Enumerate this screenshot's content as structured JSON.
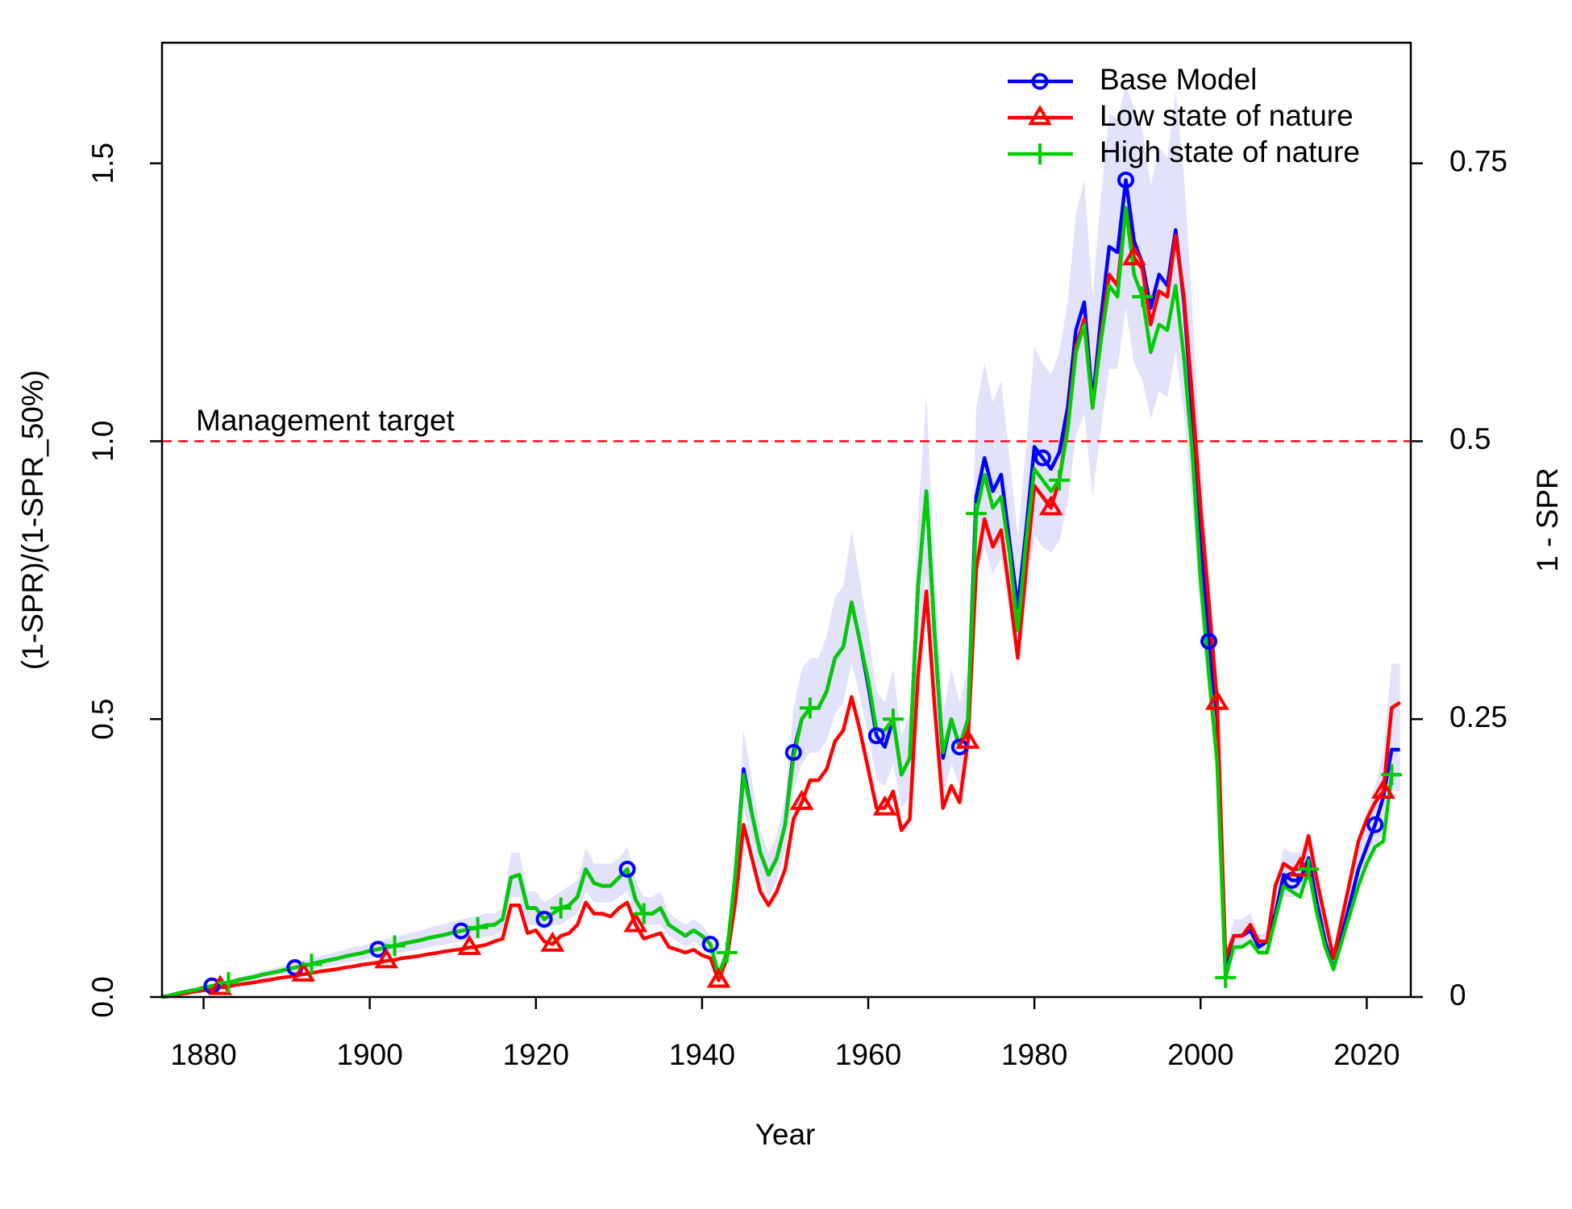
{
  "chart_data": {
    "type": "line",
    "x_label": "Year",
    "y_label": "(1-SPR)/(1-SPR_50%)",
    "y2_label": "1 - SPR",
    "x": [
      1875,
      1876,
      1877,
      1878,
      1879,
      1880,
      1881,
      1882,
      1883,
      1884,
      1885,
      1886,
      1887,
      1888,
      1889,
      1890,
      1891,
      1892,
      1893,
      1894,
      1895,
      1896,
      1897,
      1898,
      1899,
      1900,
      1901,
      1902,
      1903,
      1904,
      1905,
      1906,
      1907,
      1908,
      1909,
      1910,
      1911,
      1912,
      1913,
      1914,
      1915,
      1916,
      1917,
      1918,
      1919,
      1920,
      1921,
      1922,
      1923,
      1924,
      1925,
      1926,
      1927,
      1928,
      1929,
      1930,
      1931,
      1932,
      1933,
      1934,
      1935,
      1936,
      1937,
      1938,
      1939,
      1940,
      1941,
      1942,
      1943,
      1944,
      1945,
      1946,
      1947,
      1948,
      1949,
      1950,
      1951,
      1952,
      1953,
      1954,
      1955,
      1956,
      1957,
      1958,
      1959,
      1960,
      1961,
      1962,
      1963,
      1964,
      1965,
      1966,
      1967,
      1968,
      1969,
      1970,
      1971,
      1972,
      1973,
      1974,
      1975,
      1976,
      1977,
      1978,
      1979,
      1980,
      1981,
      1982,
      1983,
      1984,
      1985,
      1986,
      1987,
      1988,
      1989,
      1990,
      1991,
      1992,
      1993,
      1994,
      1995,
      1996,
      1997,
      1998,
      1999,
      2000,
      2001,
      2002,
      2003,
      2004,
      2005,
      2006,
      2007,
      2008,
      2009,
      2010,
      2011,
      2012,
      2013,
      2014,
      2015,
      2016,
      2017,
      2018,
      2019,
      2020,
      2021,
      2022,
      2023,
      2024
    ],
    "series": [
      {
        "name": "Base Model",
        "color": "#0000ff",
        "marker": "circle",
        "values": [
          0,
          0.003,
          0.007,
          0.01,
          0.013,
          0.017,
          0.02,
          0.023,
          0.026,
          0.03,
          0.033,
          0.036,
          0.04,
          0.043,
          0.046,
          0.05,
          0.053,
          0.056,
          0.059,
          0.063,
          0.066,
          0.069,
          0.073,
          0.076,
          0.079,
          0.083,
          0.086,
          0.089,
          0.092,
          0.096,
          0.099,
          0.102,
          0.106,
          0.109,
          0.112,
          0.116,
          0.119,
          0.122,
          0.125,
          0.129,
          0.13,
          0.14,
          0.215,
          0.22,
          0.16,
          0.16,
          0.14,
          0.15,
          0.16,
          0.165,
          0.18,
          0.23,
          0.205,
          0.2,
          0.2,
          0.215,
          0.23,
          0.175,
          0.15,
          0.15,
          0.16,
          0.13,
          0.12,
          0.11,
          0.12,
          0.11,
          0.095,
          0.04,
          0.08,
          0.22,
          0.41,
          0.33,
          0.26,
          0.22,
          0.25,
          0.31,
          0.44,
          0.5,
          0.52,
          0.52,
          0.55,
          0.61,
          0.63,
          0.71,
          0.64,
          0.56,
          0.47,
          0.45,
          0.5,
          0.4,
          0.43,
          0.74,
          0.91,
          0.65,
          0.43,
          0.5,
          0.45,
          0.5,
          0.9,
          0.97,
          0.91,
          0.94,
          0.82,
          0.7,
          0.84,
          0.99,
          0.97,
          0.95,
          0.98,
          1.06,
          1.2,
          1.25,
          1.07,
          1.22,
          1.35,
          1.34,
          1.47,
          1.36,
          1.32,
          1.24,
          1.3,
          1.28,
          1.38,
          1.25,
          1.05,
          0.82,
          0.64,
          0.5,
          0.06,
          0.11,
          0.11,
          0.12,
          0.09,
          0.1,
          0.15,
          0.22,
          0.21,
          0.21,
          0.25,
          0.17,
          0.1,
          0.05,
          0.11,
          0.17,
          0.23,
          0.27,
          0.31,
          0.36,
          0.445,
          0.445
        ]
      },
      {
        "name": "Low state of nature",
        "color": "#ff0000",
        "marker": "triangle",
        "values": [
          0,
          0.002,
          0.005,
          0.007,
          0.01,
          0.012,
          0.014,
          0.017,
          0.019,
          0.022,
          0.024,
          0.026,
          0.029,
          0.031,
          0.034,
          0.036,
          0.038,
          0.041,
          0.043,
          0.046,
          0.048,
          0.05,
          0.053,
          0.055,
          0.058,
          0.06,
          0.062,
          0.065,
          0.067,
          0.07,
          0.072,
          0.074,
          0.077,
          0.079,
          0.082,
          0.084,
          0.086,
          0.089,
          0.091,
          0.094,
          0.1,
          0.105,
          0.165,
          0.165,
          0.115,
          0.12,
          0.1,
          0.095,
          0.11,
          0.115,
          0.13,
          0.17,
          0.15,
          0.15,
          0.145,
          0.16,
          0.17,
          0.13,
          0.105,
          0.11,
          0.115,
          0.09,
          0.085,
          0.08,
          0.085,
          0.075,
          0.07,
          0.03,
          0.07,
          0.17,
          0.31,
          0.25,
          0.19,
          0.165,
          0.19,
          0.23,
          0.32,
          0.35,
          0.39,
          0.39,
          0.41,
          0.46,
          0.48,
          0.54,
          0.48,
          0.41,
          0.34,
          0.34,
          0.37,
          0.3,
          0.32,
          0.58,
          0.73,
          0.52,
          0.34,
          0.38,
          0.35,
          0.46,
          0.77,
          0.86,
          0.81,
          0.84,
          0.73,
          0.61,
          0.77,
          0.92,
          0.9,
          0.88,
          0.93,
          1.03,
          1.17,
          1.22,
          1.06,
          1.19,
          1.3,
          1.28,
          1.42,
          1.33,
          1.31,
          1.21,
          1.27,
          1.26,
          1.37,
          1.26,
          1.08,
          0.88,
          0.71,
          0.53,
          0.07,
          0.11,
          0.11,
          0.13,
          0.1,
          0.1,
          0.2,
          0.24,
          0.23,
          0.23,
          0.29,
          0.21,
          0.14,
          0.07,
          0.14,
          0.21,
          0.28,
          0.32,
          0.35,
          0.37,
          0.52,
          0.53
        ]
      },
      {
        "name": "High state of nature",
        "color": "#00cd00",
        "marker": "plus",
        "values": [
          0,
          0.003,
          0.007,
          0.01,
          0.013,
          0.017,
          0.02,
          0.023,
          0.026,
          0.03,
          0.033,
          0.036,
          0.04,
          0.043,
          0.046,
          0.05,
          0.053,
          0.056,
          0.059,
          0.063,
          0.066,
          0.069,
          0.073,
          0.076,
          0.079,
          0.083,
          0.086,
          0.089,
          0.092,
          0.096,
          0.099,
          0.102,
          0.106,
          0.109,
          0.112,
          0.116,
          0.119,
          0.122,
          0.125,
          0.129,
          0.13,
          0.14,
          0.215,
          0.22,
          0.16,
          0.16,
          0.14,
          0.15,
          0.16,
          0.165,
          0.18,
          0.23,
          0.205,
          0.2,
          0.2,
          0.215,
          0.23,
          0.175,
          0.15,
          0.15,
          0.16,
          0.13,
          0.12,
          0.11,
          0.12,
          0.11,
          0.095,
          0.04,
          0.08,
          0.22,
          0.4,
          0.33,
          0.26,
          0.22,
          0.25,
          0.31,
          0.43,
          0.5,
          0.52,
          0.52,
          0.55,
          0.61,
          0.63,
          0.71,
          0.64,
          0.57,
          0.48,
          0.48,
          0.5,
          0.4,
          0.43,
          0.74,
          0.91,
          0.65,
          0.44,
          0.5,
          0.45,
          0.5,
          0.87,
          0.94,
          0.88,
          0.9,
          0.8,
          0.66,
          0.82,
          0.95,
          0.93,
          0.91,
          0.93,
          1.02,
          1.16,
          1.21,
          1.06,
          1.18,
          1.28,
          1.26,
          1.42,
          1.3,
          1.26,
          1.16,
          1.21,
          1.2,
          1.28,
          1.15,
          0.98,
          0.75,
          0.58,
          0.42,
          0.035,
          0.09,
          0.09,
          0.1,
          0.08,
          0.08,
          0.14,
          0.2,
          0.19,
          0.18,
          0.23,
          0.15,
          0.09,
          0.05,
          0.1,
          0.15,
          0.2,
          0.24,
          0.27,
          0.28,
          0.4,
          0.4
        ]
      }
    ],
    "band": {
      "color": "#e2e2fb",
      "upper": [
        0,
        0.004,
        0.008,
        0.012,
        0.015,
        0.02,
        0.023,
        0.027,
        0.03,
        0.035,
        0.039,
        0.042,
        0.047,
        0.05,
        0.054,
        0.059,
        0.062,
        0.066,
        0.069,
        0.074,
        0.077,
        0.081,
        0.085,
        0.089,
        0.092,
        0.097,
        0.1,
        0.104,
        0.108,
        0.112,
        0.116,
        0.119,
        0.124,
        0.128,
        0.131,
        0.136,
        0.139,
        0.143,
        0.146,
        0.151,
        0.15,
        0.16,
        0.26,
        0.26,
        0.19,
        0.19,
        0.17,
        0.18,
        0.19,
        0.2,
        0.21,
        0.27,
        0.24,
        0.24,
        0.24,
        0.25,
        0.27,
        0.21,
        0.18,
        0.18,
        0.19,
        0.15,
        0.14,
        0.13,
        0.14,
        0.13,
        0.11,
        0.05,
        0.1,
        0.26,
        0.48,
        0.39,
        0.3,
        0.26,
        0.29,
        0.36,
        0.52,
        0.59,
        0.61,
        0.61,
        0.65,
        0.72,
        0.74,
        0.84,
        0.75,
        0.66,
        0.55,
        0.53,
        0.59,
        0.47,
        0.51,
        0.87,
        1.08,
        0.77,
        0.51,
        0.59,
        0.53,
        0.59,
        1.06,
        1.14,
        1.07,
        1.11,
        0.97,
        0.83,
        0.99,
        1.17,
        1.14,
        1.12,
        1.16,
        1.25,
        1.41,
        1.47,
        1.26,
        1.44,
        1.59,
        1.58,
        1.64,
        1.6,
        1.56,
        1.46,
        1.53,
        1.51,
        1.63,
        1.48,
        1.24,
        0.97,
        0.76,
        0.59,
        0.08,
        0.14,
        0.14,
        0.15,
        0.11,
        0.12,
        0.19,
        0.27,
        0.26,
        0.26,
        0.3,
        0.21,
        0.13,
        0.07,
        0.14,
        0.21,
        0.28,
        0.33,
        0.38,
        0.44,
        0.6,
        0.6
      ],
      "lower": [
        0,
        0.003,
        0.006,
        0.008,
        0.011,
        0.014,
        0.017,
        0.019,
        0.022,
        0.025,
        0.028,
        0.03,
        0.034,
        0.036,
        0.039,
        0.042,
        0.045,
        0.047,
        0.05,
        0.053,
        0.055,
        0.058,
        0.061,
        0.064,
        0.066,
        0.07,
        0.072,
        0.075,
        0.077,
        0.081,
        0.083,
        0.086,
        0.089,
        0.092,
        0.094,
        0.097,
        0.1,
        0.102,
        0.105,
        0.108,
        0.11,
        0.12,
        0.18,
        0.18,
        0.13,
        0.13,
        0.12,
        0.13,
        0.13,
        0.14,
        0.15,
        0.19,
        0.17,
        0.17,
        0.17,
        0.18,
        0.19,
        0.15,
        0.13,
        0.13,
        0.13,
        0.11,
        0.1,
        0.09,
        0.1,
        0.09,
        0.08,
        0.03,
        0.07,
        0.18,
        0.34,
        0.28,
        0.22,
        0.18,
        0.21,
        0.26,
        0.37,
        0.42,
        0.44,
        0.44,
        0.46,
        0.51,
        0.53,
        0.6,
        0.54,
        0.47,
        0.39,
        0.38,
        0.42,
        0.34,
        0.36,
        0.62,
        0.76,
        0.55,
        0.36,
        0.42,
        0.38,
        0.42,
        0.76,
        0.81,
        0.76,
        0.79,
        0.69,
        0.59,
        0.71,
        0.83,
        0.81,
        0.8,
        0.82,
        0.89,
        1.01,
        1.05,
        0.9,
        1.02,
        1.13,
        1.13,
        1.24,
        1.14,
        1.11,
        1.04,
        1.09,
        1.08,
        1.16,
        1.05,
        0.88,
        0.69,
        0.54,
        0.42,
        0.05,
        0.09,
        0.09,
        0.1,
        0.08,
        0.08,
        0.13,
        0.18,
        0.18,
        0.18,
        0.21,
        0.14,
        0.08,
        0.04,
        0.09,
        0.14,
        0.19,
        0.23,
        0.26,
        0.3,
        0.37,
        0.37
      ]
    },
    "reference_line": {
      "value": 1,
      "label": "Management target",
      "color": "#ff0000"
    },
    "xlim": [
      1875,
      2025.3
    ],
    "xticks": [
      1880,
      1900,
      1920,
      1940,
      1960,
      1980,
      2000,
      2020
    ],
    "ylim": [
      0,
      1.717
    ],
    "yticks": [
      {
        "value": 0,
        "label": "0.0"
      },
      0.5,
      {
        "value": 1,
        "label": "1.0"
      },
      1.5
    ],
    "y2lim": [
      0,
      0.8585
    ],
    "y2ticks": [
      0,
      0.25,
      0.5,
      0.75
    ],
    "legend": "top-right"
  }
}
